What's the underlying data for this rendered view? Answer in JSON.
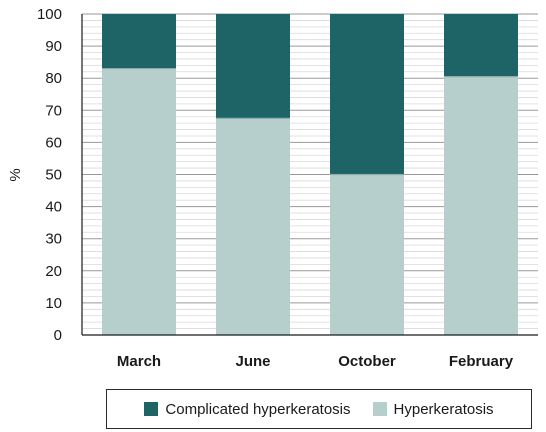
{
  "chart_data": {
    "type": "bar",
    "stacked": true,
    "categories": [
      "March",
      "June",
      "October",
      "February"
    ],
    "series": [
      {
        "name": "Hyperkeratosis",
        "values": [
          83,
          67.5,
          50,
          80.5
        ],
        "color": "#b7cfcc"
      },
      {
        "name": "Complicated hyperkeratosis",
        "values": [
          17,
          32.5,
          50,
          19.5
        ],
        "color": "#1e6466"
      }
    ],
    "ylabel": "%",
    "xlabel": "",
    "ylim": [
      0,
      100
    ],
    "yticks": [
      0,
      10,
      20,
      30,
      40,
      50,
      60,
      70,
      80,
      90,
      100
    ],
    "grid": true,
    "legend": "bottom",
    "legend_order": [
      "Complicated hyperkeratosis",
      "Hyperkeratosis"
    ]
  }
}
